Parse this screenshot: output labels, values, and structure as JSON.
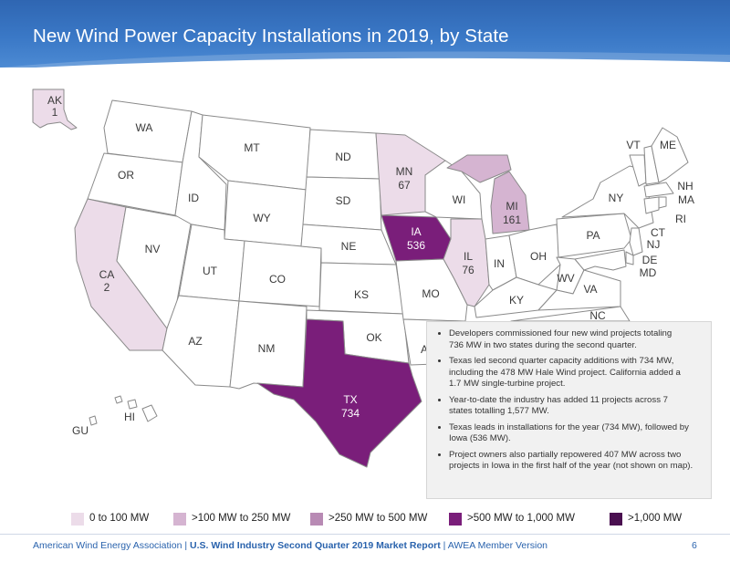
{
  "title": "New Wind Power Capacity Installations in 2019, by State",
  "colors": {
    "header": "#3a78c6",
    "none": "#ffffff",
    "tier1": "#ecdce9",
    "tier2": "#d5b4d1",
    "tier3": "#b88ab4",
    "tier4": "#7a1e7a",
    "tier5": "#4a1050",
    "border": "#8a8a8a"
  },
  "states": {
    "AK": {
      "name": "AK",
      "value": "1",
      "tier": "tier1"
    },
    "WA": {
      "name": "WA"
    },
    "OR": {
      "name": "OR"
    },
    "CA": {
      "name": "CA",
      "value": "2",
      "tier": "tier1"
    },
    "NV": {
      "name": "NV"
    },
    "ID": {
      "name": "ID"
    },
    "MT": {
      "name": "MT"
    },
    "WY": {
      "name": "WY"
    },
    "UT": {
      "name": "UT"
    },
    "CO": {
      "name": "CO"
    },
    "AZ": {
      "name": "AZ"
    },
    "NM": {
      "name": "NM"
    },
    "ND": {
      "name": "ND"
    },
    "SD": {
      "name": "SD"
    },
    "NE": {
      "name": "NE"
    },
    "KS": {
      "name": "KS"
    },
    "OK": {
      "name": "OK"
    },
    "TX": {
      "name": "TX",
      "value": "734",
      "tier": "tier4"
    },
    "MN": {
      "name": "MN",
      "value": "67",
      "tier": "tier1"
    },
    "IA": {
      "name": "IA",
      "value": "536",
      "tier": "tier4"
    },
    "MO": {
      "name": "MO"
    },
    "AR": {
      "name": "A"
    },
    "WI": {
      "name": "WI"
    },
    "IL": {
      "name": "IL",
      "value": "76",
      "tier": "tier1"
    },
    "MI": {
      "name": "MI",
      "value": "161",
      "tier": "tier2"
    },
    "IN": {
      "name": "IN"
    },
    "OH": {
      "name": "OH"
    },
    "KY": {
      "name": "KY"
    },
    "WV": {
      "name": "WV"
    },
    "VA": {
      "name": "VA"
    },
    "NC": {
      "name": "NC"
    },
    "PA": {
      "name": "PA"
    },
    "NY": {
      "name": "NY"
    },
    "VT": {
      "name": "VT"
    },
    "ME": {
      "name": "ME"
    },
    "NH": {
      "name": "NH"
    },
    "MA": {
      "name": "MA"
    },
    "RI": {
      "name": "RI"
    },
    "CT": {
      "name": "CT"
    },
    "NJ": {
      "name": "NJ"
    },
    "DE": {
      "name": "DE"
    },
    "MD": {
      "name": "MD"
    },
    "HI": {
      "name": "HI"
    },
    "GU": {
      "name": "GU"
    }
  },
  "notes": [
    "Developers commissioned four new wind projects totaling\n736 MW in two states during the second quarter.",
    "Texas led second quarter capacity additions with 734 MW,\nincluding the 478 MW Hale Wind project. California added a\n1.7 MW single-turbine project.",
    "Year-to-date the industry has added 11 projects across 7\nstates totalling 1,577 MW.",
    "Texas leads in installations for the year (734 MW), followed by\nIowa (536 MW).",
    "Project owners also partially repowered 407 MW across two\nprojects in Iowa in the first half of the year (not shown on map)."
  ],
  "legend": [
    {
      "label": "0 to 100 MW",
      "tier": "tier1"
    },
    {
      "label": ">100 MW to 250 MW",
      "tier": "tier2"
    },
    {
      "label": ">250 MW to 500 MW",
      "tier": "tier3"
    },
    {
      "label": ">500 MW to 1,000 MW",
      "tier": "tier4"
    },
    {
      "label": ">1,000 MW",
      "tier": "tier5"
    }
  ],
  "footer": {
    "org": "American Wind Energy Association",
    "separator": "|",
    "report": "U.S. Wind Industry Second Quarter 2019 Market Report",
    "version": "AWEA Member Version",
    "page": "6"
  }
}
